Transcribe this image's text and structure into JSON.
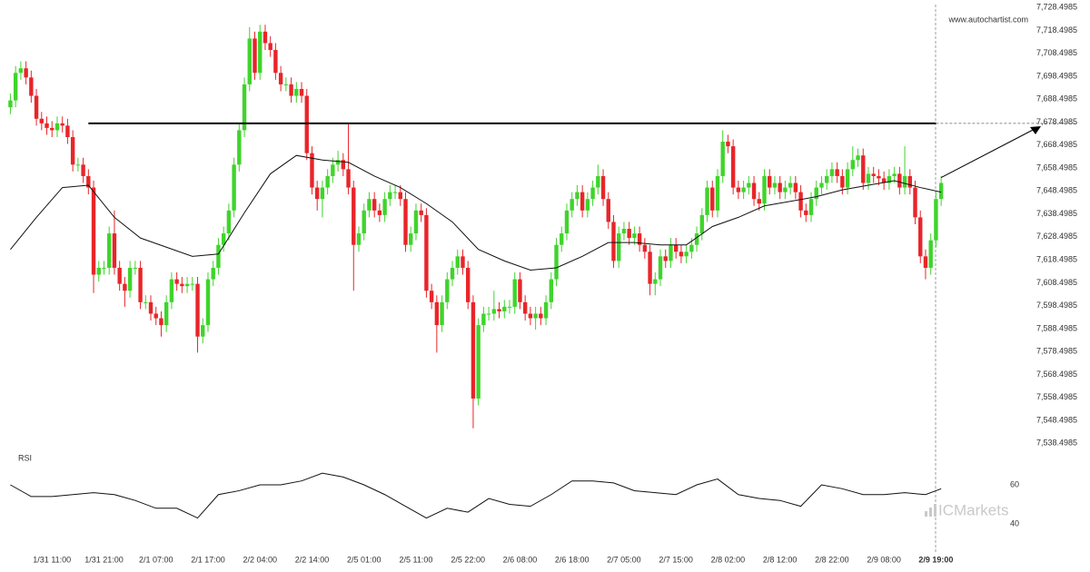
{
  "site": "www.autochartist.com",
  "brand": "ICMarkets",
  "chart_data": {
    "type": "candlestick",
    "up_color": "#3fd42c",
    "down_color": "#e8252a",
    "xlim": [
      -2,
      179.5
    ],
    "ylim": [
      7535,
      7731
    ],
    "xticks": [
      {
        "value": 8,
        "label": "1/31 11:00"
      },
      {
        "value": 18,
        "label": "1/31 21:00"
      },
      {
        "value": 28,
        "label": "2/1 07:00"
      },
      {
        "value": 38,
        "label": "2/1 17:00"
      },
      {
        "value": 48,
        "label": "2/2 04:00"
      },
      {
        "value": 58,
        "label": "2/2 14:00"
      },
      {
        "value": 68,
        "label": "2/5 01:00"
      },
      {
        "value": 78,
        "label": "2/5 11:00"
      },
      {
        "value": 88,
        "label": "2/5 22:00"
      },
      {
        "value": 98,
        "label": "2/6 08:00"
      },
      {
        "value": 108,
        "label": "2/6 18:00"
      },
      {
        "value": 118,
        "label": "2/7 05:00"
      },
      {
        "value": 128,
        "label": "2/7 15:00"
      },
      {
        "value": 138,
        "label": "2/8 02:00"
      },
      {
        "value": 148,
        "label": "2/8 12:00"
      },
      {
        "value": 158,
        "label": "2/8 22:00"
      },
      {
        "value": 168,
        "label": "2/9 08:00"
      },
      {
        "value": 178,
        "label": "2/9 19:00"
      }
    ],
    "yticks": [
      {
        "value": 7728.4985,
        "label": "7,728.4985"
      },
      {
        "value": 7718.4985,
        "label": "7,718.4985"
      },
      {
        "value": 7708.4985,
        "label": "7,708.4985"
      },
      {
        "value": 7698.4985,
        "label": "7,698.4985"
      },
      {
        "value": 7688.4985,
        "label": "7,688.4985"
      },
      {
        "value": 7678.4985,
        "label": "7,678.4985"
      },
      {
        "value": 7668.4985,
        "label": "7,668.4985"
      },
      {
        "value": 7658.4985,
        "label": "7,658.4985"
      },
      {
        "value": 7648.4985,
        "label": "7,648.4985"
      },
      {
        "value": 7638.4985,
        "label": "7,638.4985"
      },
      {
        "value": 7628.4985,
        "label": "7,628.4985"
      },
      {
        "value": 7618.4985,
        "label": "7,618.4985"
      },
      {
        "value": 7608.4985,
        "label": "7,608.4985"
      },
      {
        "value": 7598.4985,
        "label": "7,598.4985"
      },
      {
        "value": 7588.4985,
        "label": "7,588.4985"
      },
      {
        "value": 7578.4985,
        "label": "7,578.4985"
      },
      {
        "value": 7568.4985,
        "label": "7,568.4985"
      },
      {
        "value": 7558.4985,
        "label": "7,558.4985"
      },
      {
        "value": 7548.4985,
        "label": "7,548.4985"
      },
      {
        "value": 7538.4985,
        "label": "7,538.4985"
      }
    ],
    "open": [
      7685,
      7688,
      7700,
      7702,
      7698,
      7690,
      7680,
      7678,
      7676,
      7675,
      7678,
      7677,
      7672,
      7660,
      7660,
      7655,
      7650,
      7612,
      7615,
      7615,
      7630,
      7615,
      7608,
      7605,
      7615,
      7615,
      7600,
      7600,
      7595,
      7593,
      7590,
      7600,
      7610,
      7608,
      7607,
      7608,
      7608,
      7585,
      7590,
      7610,
      7615,
      7625,
      7630,
      7640,
      7660,
      7675,
      7695,
      7715,
      7700,
      7718,
      7713,
      7710,
      7700,
      7695,
      7695,
      7690,
      7693,
      7690,
      7665,
      7650,
      7645,
      7650,
      7655,
      7660,
      7662,
      7658,
      7650,
      7625,
      7630,
      7640,
      7645,
      7640,
      7638,
      7645,
      7648,
      7648,
      7645,
      7625,
      7630,
      7640,
      7638,
      7605,
      7600,
      7590,
      7600,
      7610,
      7615,
      7620,
      7615,
      7600,
      7558,
      7590,
      7595,
      7595,
      7597,
      7596,
      7598,
      7598,
      7610,
      7600,
      7595,
      7593,
      7595,
      7593,
      7600,
      7610,
      7625,
      7630,
      7640,
      7645,
      7648,
      7640,
      7645,
      7650,
      7655,
      7645,
      7635,
      7618,
      7630,
      7632,
      7628,
      7630,
      7625,
      7622,
      7608,
      7610,
      7620,
      7618,
      7625,
      7622,
      7620,
      7622,
      7625,
      7630,
      7638,
      7650,
      7640,
      7655,
      7670,
      7668,
      7650,
      7648,
      7650,
      7652,
      7645,
      7643,
      7655,
      7650,
      7652,
      7648,
      7650,
      7652,
      7648,
      7640,
      7638,
      7645,
      7650,
      7652,
      7655,
      7658,
      7655,
      7650,
      7658,
      7662,
      7664,
      7652,
      7656,
      7655,
      7654,
      7652,
      7655,
      7656,
      7650,
      7655,
      7650,
      7637,
      7620,
      7615,
      7627,
      7645
    ],
    "high": [
      7691,
      7703,
      7705,
      7705,
      7701,
      7693,
      7683,
      7681,
      7679,
      7681,
      7681,
      7680,
      7675,
      7663,
      7663,
      7658,
      7653,
      7618,
      7618,
      7633,
      7640,
      7618,
      7611,
      7618,
      7618,
      7618,
      7603,
      7603,
      7598,
      7596,
      7603,
      7613,
      7613,
      7611,
      7611,
      7611,
      7611,
      7593,
      7613,
      7618,
      7628,
      7633,
      7643,
      7663,
      7678,
      7698,
      7720,
      7718,
      7721,
      7721,
      7716,
      7713,
      7703,
      7698,
      7698,
      7696,
      7696,
      7693,
      7668,
      7653,
      7653,
      7658,
      7663,
      7666,
      7665,
      7678,
      7653,
      7633,
      7643,
      7648,
      7648,
      7643,
      7648,
      7651,
      7651,
      7651,
      7648,
      7633,
      7643,
      7643,
      7641,
      7608,
      7603,
      7603,
      7613,
      7618,
      7623,
      7623,
      7618,
      7603,
      7593,
      7598,
      7598,
      7605,
      7600,
      7601,
      7601,
      7613,
      7613,
      7603,
      7598,
      7598,
      7598,
      7603,
      7613,
      7628,
      7633,
      7643,
      7648,
      7651,
      7651,
      7648,
      7653,
      7660,
      7658,
      7648,
      7638,
      7633,
      7635,
      7635,
      7633,
      7633,
      7628,
      7625,
      7613,
      7623,
      7623,
      7628,
      7628,
      7625,
      7625,
      7628,
      7633,
      7641,
      7653,
      7653,
      7658,
      7675,
      7673,
      7671,
      7653,
      7653,
      7655,
      7655,
      7648,
      7658,
      7658,
      7655,
      7655,
      7653,
      7655,
      7655,
      7651,
      7643,
      7648,
      7653,
      7655,
      7658,
      7661,
      7661,
      7658,
      7661,
      7668,
      7667,
      7667,
      7659,
      7659,
      7658,
      7657,
      7658,
      7659,
      7659,
      7668,
      7658,
      7653,
      7640,
      7623,
      7630,
      7648,
      7655
    ],
    "low": [
      7682,
      7685,
      7697,
      7695,
      7687,
      7677,
      7675,
      7673,
      7672,
      7672,
      7674,
      7669,
      7657,
      7657,
      7652,
      7647,
      7604,
      7609,
      7612,
      7612,
      7612,
      7605,
      7598,
      7602,
      7612,
      7597,
      7597,
      7592,
      7590,
      7585,
      7587,
      7597,
      7605,
      7604,
      7604,
      7605,
      7578,
      7582,
      7587,
      7607,
      7612,
      7622,
      7627,
      7637,
      7657,
      7672,
      7692,
      7697,
      7697,
      7710,
      7707,
      7697,
      7692,
      7692,
      7687,
      7687,
      7687,
      7662,
      7647,
      7640,
      7637,
      7647,
      7652,
      7657,
      7655,
      7647,
      7605,
      7622,
      7627,
      7637,
      7637,
      7635,
      7635,
      7642,
      7645,
      7642,
      7622,
      7622,
      7627,
      7635,
      7602,
      7597,
      7578,
      7587,
      7597,
      7607,
      7612,
      7612,
      7597,
      7545,
      7555,
      7587,
      7592,
      7592,
      7593,
      7593,
      7595,
      7595,
      7597,
      7592,
      7590,
      7588,
      7590,
      7590,
      7597,
      7607,
      7622,
      7627,
      7637,
      7642,
      7637,
      7637,
      7642,
      7647,
      7642,
      7632,
      7615,
      7615,
      7627,
      7625,
      7625,
      7622,
      7619,
      7603,
      7603,
      7607,
      7615,
      7615,
      7619,
      7617,
      7617,
      7619,
      7622,
      7627,
      7635,
      7637,
      7637,
      7652,
      7665,
      7647,
      7645,
      7645,
      7647,
      7642,
      7640,
      7640,
      7647,
      7647,
      7645,
      7645,
      7647,
      7645,
      7637,
      7635,
      7635,
      7642,
      7647,
      7649,
      7652,
      7652,
      7647,
      7647,
      7655,
      7659,
      7649,
      7649,
      7652,
      7651,
      7649,
      7649,
      7652,
      7647,
      7647,
      7647,
      7634,
      7617,
      7610,
      7612,
      7624,
      7642
    ],
    "close": [
      7688,
      7700,
      7702,
      7698,
      7690,
      7680,
      7678,
      7676,
      7675,
      7678,
      7677,
      7672,
      7660,
      7660,
      7655,
      7650,
      7612,
      7615,
      7615,
      7630,
      7615,
      7608,
      7605,
      7615,
      7615,
      7600,
      7600,
      7595,
      7593,
      7590,
      7600,
      7610,
      7608,
      7607,
      7608,
      7608,
      7585,
      7590,
      7610,
      7615,
      7625,
      7630,
      7640,
      7660,
      7675,
      7695,
      7715,
      7700,
      7718,
      7713,
      7710,
      7700,
      7695,
      7695,
      7690,
      7693,
      7690,
      7665,
      7650,
      7645,
      7650,
      7655,
      7660,
      7662,
      7658,
      7650,
      7625,
      7630,
      7640,
      7645,
      7640,
      7638,
      7645,
      7648,
      7648,
      7645,
      7625,
      7630,
      7640,
      7638,
      7605,
      7600,
      7590,
      7600,
      7610,
      7615,
      7620,
      7615,
      7600,
      7558,
      7590,
      7595,
      7595,
      7597,
      7596,
      7598,
      7598,
      7610,
      7600,
      7595,
      7593,
      7595,
      7593,
      7600,
      7610,
      7625,
      7630,
      7640,
      7645,
      7648,
      7640,
      7645,
      7650,
      7655,
      7645,
      7635,
      7618,
      7630,
      7632,
      7628,
      7630,
      7625,
      7622,
      7608,
      7610,
      7620,
      7618,
      7625,
      7622,
      7620,
      7622,
      7625,
      7630,
      7638,
      7650,
      7640,
      7655,
      7670,
      7668,
      7650,
      7648,
      7650,
      7652,
      7645,
      7643,
      7655,
      7650,
      7652,
      7648,
      7650,
      7652,
      7648,
      7640,
      7638,
      7645,
      7650,
      7652,
      7655,
      7658,
      7655,
      7650,
      7658,
      7662,
      7664,
      7652,
      7656,
      7655,
      7654,
      7652,
      7655,
      7656,
      7650,
      7655,
      7650,
      7637,
      7620,
      7615,
      7627,
      7645,
      7652
    ],
    "moving_average": {
      "color": "#111111",
      "x": [
        0,
        5,
        10,
        15,
        20,
        25,
        30,
        35,
        40,
        45,
        50,
        55,
        60,
        65,
        70,
        75,
        80,
        85,
        90,
        95,
        100,
        105,
        110,
        115,
        120,
        125,
        130,
        135,
        140,
        145,
        150,
        155,
        160,
        165,
        170,
        175,
        179
      ],
      "values": [
        7623,
        7637,
        7650,
        7651,
        7637,
        7628,
        7624,
        7620,
        7621,
        7639,
        7656,
        7664,
        7662,
        7661,
        7655,
        7650,
        7643,
        7635,
        7623,
        7618,
        7614,
        7615,
        7620,
        7626,
        7626,
        7625,
        7625,
        7633,
        7637,
        7642,
        7644,
        7646,
        7649,
        7651,
        7653,
        7650,
        7648
      ]
    },
    "resistance": {
      "value": 7678,
      "x": [
        15,
        178
      ]
    },
    "rsi": {
      "type": "line",
      "title": "RSI",
      "color": "#111111",
      "ylim": [
        30,
        76
      ],
      "yticks": [
        40,
        60
      ],
      "x": [
        0,
        4,
        8,
        12,
        16,
        20,
        24,
        28,
        32,
        36,
        40,
        44,
        48,
        52,
        56,
        60,
        64,
        68,
        72,
        76,
        80,
        84,
        88,
        92,
        96,
        100,
        104,
        108,
        112,
        116,
        120,
        124,
        128,
        132,
        136,
        140,
        144,
        148,
        152,
        156,
        160,
        164,
        168,
        172,
        176,
        179
      ],
      "values": [
        60,
        54,
        54,
        55,
        56,
        55,
        52,
        48,
        48,
        43,
        55,
        57,
        60,
        60,
        62,
        66,
        64,
        60,
        55,
        49,
        43,
        48,
        46,
        53,
        50,
        49,
        55,
        62,
        62,
        61,
        57,
        56,
        55,
        60,
        63,
        55,
        53,
        52,
        49,
        60,
        58,
        55,
        55,
        56,
        55,
        58
      ]
    }
  }
}
